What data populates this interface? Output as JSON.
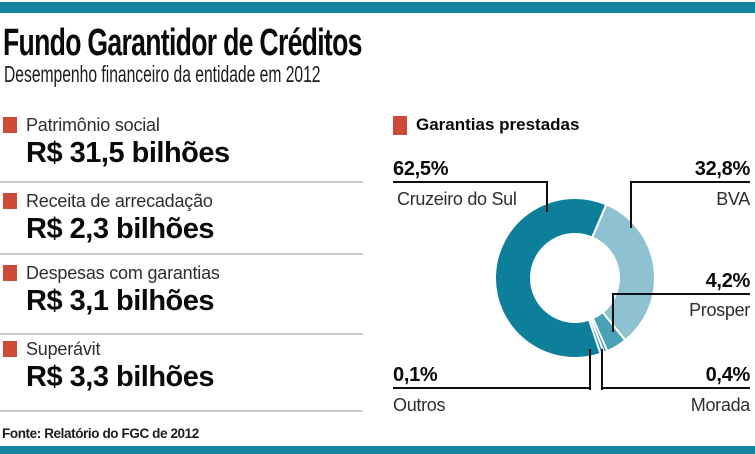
{
  "page": {
    "title": "Fundo Garantidor de Créditos",
    "subtitle": "Desempenho financeiro da entidade em 2012",
    "source": "Fonte: Relatório do FGC de 2012",
    "accent_teal": "#15829e",
    "accent_red": "#cd4a38"
  },
  "stats": [
    {
      "label": "Patrimônio social",
      "value": "R$ 31,5 bilhões"
    },
    {
      "label": "Receita de arrecadação",
      "value": "R$ 2,3 bilhões"
    },
    {
      "label": "Despesas com garantias",
      "value": "R$ 3,1 bilhões"
    },
    {
      "label": "Superávit",
      "value": "R$ 3,3 bilhões"
    }
  ],
  "chart_data": {
    "type": "pie",
    "subtype": "donut",
    "title": "Garantias prestadas",
    "unit": "%",
    "start_angle_deg": 23,
    "slices": [
      {
        "label": "BVA",
        "value": 32.8,
        "display": "32,8%",
        "color": "#8fc2d1"
      },
      {
        "label": "Prosper",
        "value": 4.2,
        "display": "4,2%",
        "color": "#4aa1b6"
      },
      {
        "label": "Morada",
        "value": 0.4,
        "display": "0,4%",
        "color": "#2e8ea6"
      },
      {
        "label": "Outros",
        "value": 0.1,
        "display": "0,1%",
        "color": "#17859f"
      },
      {
        "label": "Cruzeiro do Sul",
        "value": 62.5,
        "display": "62,5%",
        "color": "#0e7f9b"
      }
    ]
  }
}
